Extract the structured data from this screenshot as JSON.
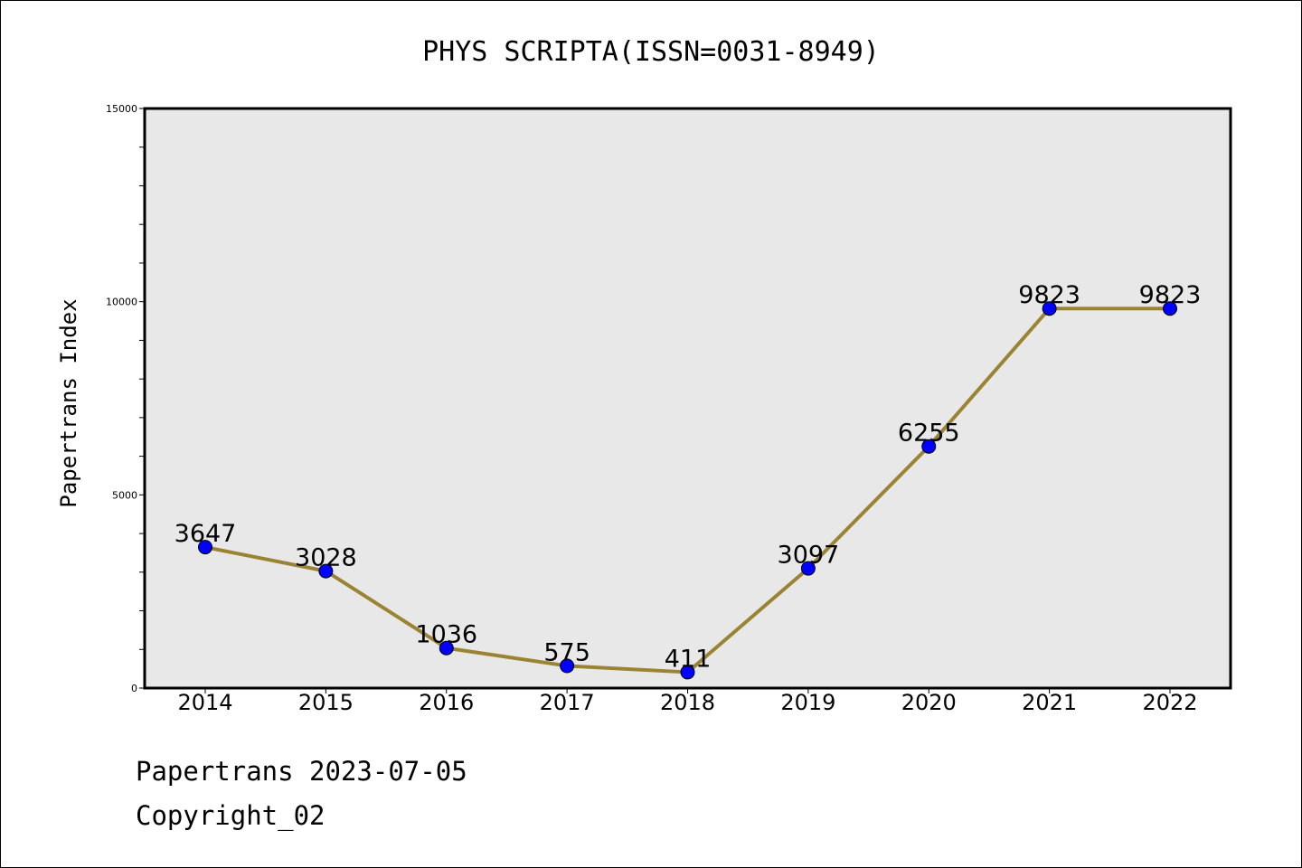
{
  "chart_data": {
    "type": "line",
    "title": "PHYS SCRIPTA(ISSN=0031-8949)",
    "xlabel": "",
    "ylabel": "Papertrans Index",
    "categories": [
      "2014",
      "2015",
      "2016",
      "2017",
      "2018",
      "2019",
      "2020",
      "2021",
      "2022"
    ],
    "series": [
      {
        "values": [
          3647,
          3028,
          1036,
          575,
          411,
          3097,
          6255,
          9823,
          9823
        ]
      }
    ],
    "data_labels": [
      "3647",
      "3028",
      "1036",
      "575",
      "411",
      "3097",
      "6255",
      "9823",
      "9823"
    ],
    "ylim": [
      0,
      15000
    ],
    "yticks": [
      "0",
      "5000",
      "10000",
      "15000"
    ],
    "grid": false,
    "line_color": "#9a8434",
    "marker_color": "#0000ff",
    "plot_background": "#e8e8e8"
  },
  "footer": {
    "date_text": "Papertrans 2023-07-05",
    "copyright_text": "Copyright_02"
  }
}
